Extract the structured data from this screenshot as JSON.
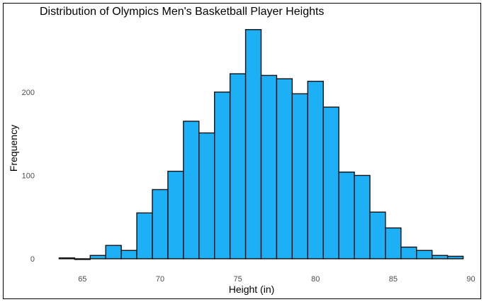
{
  "chart_data": {
    "type": "bar",
    "title": "Distribution of Olympics Men's Basketball Player Heights",
    "xlabel": "Height (in)",
    "ylabel": "Frequency",
    "bin_width": 1,
    "bin_starts": [
      63.5,
      64.5,
      65.5,
      66.5,
      67.5,
      68.5,
      69.5,
      70.5,
      71.5,
      72.5,
      73.5,
      74.5,
      75.5,
      76.5,
      77.5,
      78.5,
      79.5,
      80.5,
      81.5,
      82.5,
      83.5,
      84.5,
      85.5,
      86.5,
      87.5,
      88.5
    ],
    "values": [
      1,
      0,
      4,
      16,
      10,
      55,
      83,
      105,
      165,
      151,
      200,
      222,
      275,
      220,
      216,
      198,
      213,
      182,
      104,
      100,
      56,
      37,
      14,
      10,
      4,
      3
    ],
    "xlim": [
      62.5,
      90.5
    ],
    "ylim": [
      0,
      285
    ],
    "xticks": [
      65,
      70,
      75,
      80,
      85,
      90
    ],
    "yticks": [
      0,
      100,
      200
    ],
    "grid": false,
    "colors": {
      "fill": "#1EB0F7",
      "stroke": "#111111"
    }
  }
}
